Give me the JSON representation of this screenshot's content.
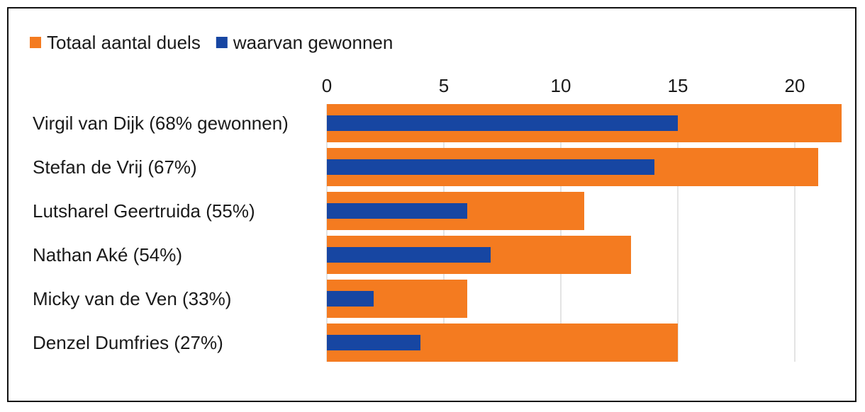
{
  "chart_data": {
    "type": "bar",
    "orientation": "horizontal",
    "categories": [
      "Virgil van Dijk (68% gewonnen)",
      "Stefan de Vrij (67%)",
      "Lutsharel Geertruida (55%)",
      "Nathan Aké (54%)",
      "Micky van de Ven (33%)",
      "Denzel Dumfries (27%)"
    ],
    "series": [
      {
        "name": "Totaal aantal duels",
        "color": "#F47B20",
        "values": [
          22,
          21,
          11,
          13,
          6,
          15
        ]
      },
      {
        "name": "waarvan gewonnen",
        "color": "#1746A2",
        "values": [
          15,
          14,
          6,
          7,
          2,
          4
        ]
      }
    ],
    "x_ticks": [
      0,
      5,
      10,
      15,
      20
    ],
    "xlim": [
      0,
      22
    ],
    "xaxis_position": "top",
    "grid": true,
    "legend_position": "top-left",
    "title": "",
    "xlabel": "",
    "ylabel": ""
  }
}
